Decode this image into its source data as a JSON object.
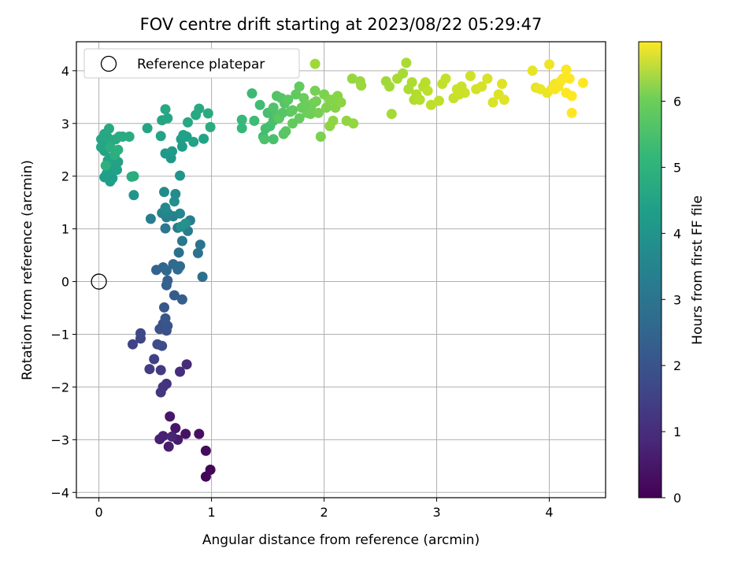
{
  "chart_data": {
    "type": "scatter",
    "title": "FOV centre drift starting at 2023/08/22 05:29:47",
    "xlabel": "Angular distance from reference (arcmin)",
    "ylabel": "Rotation from reference (arcmin)",
    "xlim": [
      -0.2,
      4.5
    ],
    "ylim": [
      -4.1,
      4.55
    ],
    "xticks": [
      0,
      1,
      2,
      3,
      4
    ],
    "yticks": [
      -4,
      -3,
      -2,
      -1,
      0,
      1,
      2,
      3,
      4
    ],
    "grid": true,
    "legend": {
      "placement": "top-left",
      "entries": [
        "Reference platepar"
      ]
    },
    "reference_point": {
      "x": 0,
      "y": 0
    },
    "colorbar": {
      "label": "Hours from first FF file",
      "colormap": "viridis",
      "min": 0,
      "max": 6.9,
      "ticks": [
        0,
        1,
        2,
        3,
        4,
        5,
        6
      ]
    },
    "points": [
      [
        0.95,
        -3.7,
        0.05
      ],
      [
        0.99,
        -3.57,
        0.1
      ],
      [
        0.95,
        -3.21,
        0.2
      ],
      [
        0.89,
        -2.89,
        0.3
      ],
      [
        0.77,
        -2.89,
        0.35
      ],
      [
        0.68,
        -2.78,
        0.4
      ],
      [
        0.63,
        -2.56,
        0.45
      ],
      [
        0.7,
        -3.0,
        0.5
      ],
      [
        0.62,
        -3.13,
        0.55
      ],
      [
        0.54,
        -2.99,
        0.6
      ],
      [
        0.57,
        -2.93,
        0.65
      ],
      [
        0.65,
        -2.94,
        0.7
      ],
      [
        0.78,
        -1.57,
        0.85
      ],
      [
        0.72,
        -1.71,
        0.9
      ],
      [
        0.6,
        -1.94,
        1.0
      ],
      [
        0.57,
        -2.0,
        1.05
      ],
      [
        0.55,
        -2.1,
        1.1
      ],
      [
        0.55,
        -1.68,
        1.2
      ],
      [
        0.45,
        -1.66,
        1.25
      ],
      [
        0.49,
        -1.47,
        1.3
      ],
      [
        0.3,
        -1.19,
        1.4
      ],
      [
        0.37,
        -1.08,
        1.45
      ],
      [
        0.37,
        -0.98,
        1.5
      ],
      [
        0.52,
        -1.19,
        1.55
      ],
      [
        0.56,
        -1.22,
        1.6
      ],
      [
        0.6,
        -0.93,
        1.65
      ],
      [
        0.54,
        -0.9,
        1.7
      ],
      [
        0.57,
        -0.8,
        1.75
      ],
      [
        0.61,
        -0.84,
        1.8
      ],
      [
        0.59,
        -0.7,
        1.85
      ],
      [
        0.58,
        -0.49,
        1.9
      ],
      [
        0.67,
        -0.26,
        2.0
      ],
      [
        0.74,
        -0.34,
        2.05
      ],
      [
        0.6,
        -0.07,
        2.1
      ],
      [
        0.61,
        0.02,
        2.15
      ],
      [
        0.51,
        0.22,
        2.2
      ],
      [
        0.57,
        0.27,
        2.25
      ],
      [
        0.6,
        0.21,
        2.3
      ],
      [
        0.66,
        0.33,
        2.35
      ],
      [
        0.72,
        0.29,
        2.4
      ],
      [
        0.7,
        0.23,
        2.45
      ],
      [
        0.92,
        0.09,
        2.5
      ],
      [
        0.71,
        0.55,
        2.55
      ],
      [
        0.88,
        0.54,
        2.6
      ],
      [
        0.9,
        0.7,
        2.65
      ],
      [
        0.74,
        0.77,
        2.7
      ],
      [
        0.59,
        1.01,
        2.75
      ],
      [
        0.7,
        1.02,
        2.8
      ],
      [
        0.79,
        0.96,
        2.85
      ],
      [
        0.81,
        1.16,
        2.9
      ],
      [
        0.46,
        1.19,
        2.95
      ],
      [
        0.6,
        1.22,
        3.0
      ],
      [
        0.66,
        1.24,
        3.05
      ],
      [
        0.56,
        1.3,
        3.1
      ],
      [
        0.61,
        1.3,
        3.15
      ],
      [
        0.72,
        1.29,
        3.2
      ],
      [
        0.59,
        1.4,
        3.25
      ],
      [
        0.58,
        1.7,
        3.3
      ],
      [
        0.68,
        1.66,
        3.35
      ],
      [
        0.67,
        1.52,
        3.4
      ],
      [
        0.73,
        1.04,
        3.45
      ],
      [
        0.77,
        1.1,
        3.5
      ],
      [
        0.31,
        1.64,
        3.55
      ],
      [
        0.72,
        2.01,
        3.6
      ],
      [
        0.64,
        2.34,
        3.65
      ],
      [
        0.59,
        2.43,
        3.7
      ],
      [
        0.65,
        2.47,
        3.75
      ],
      [
        0.74,
        2.56,
        3.8
      ],
      [
        0.73,
        2.7,
        3.85
      ],
      [
        0.78,
        2.75,
        3.9
      ],
      [
        0.75,
        2.78,
        3.92
      ],
      [
        0.84,
        2.65,
        3.95
      ],
      [
        0.93,
        2.71,
        3.98
      ],
      [
        0.55,
        2.76,
        4.0
      ],
      [
        0.43,
        2.91,
        4.02
      ],
      [
        0.56,
        3.06,
        4.05
      ],
      [
        0.61,
        3.1,
        4.07
      ],
      [
        0.59,
        3.27,
        4.1
      ],
      [
        0.79,
        3.02,
        4.12
      ],
      [
        0.86,
        3.16,
        4.15
      ],
      [
        0.89,
        3.28,
        4.17
      ],
      [
        0.97,
        3.19,
        4.2
      ],
      [
        0.99,
        2.93,
        4.22
      ],
      [
        0.05,
        1.98,
        3.8
      ],
      [
        0.08,
        2.0,
        3.82
      ],
      [
        0.1,
        1.9,
        3.84
      ],
      [
        0.12,
        1.96,
        3.86
      ],
      [
        0.07,
        2.05,
        3.88
      ],
      [
        0.12,
        2.1,
        3.9
      ],
      [
        0.16,
        2.12,
        3.92
      ],
      [
        0.14,
        2.2,
        3.94
      ],
      [
        0.17,
        2.27,
        3.96
      ],
      [
        0.08,
        2.3,
        3.98
      ],
      [
        0.11,
        2.35,
        4.0
      ],
      [
        0.05,
        2.48,
        4.02
      ],
      [
        0.02,
        2.55,
        4.04
      ],
      [
        0.04,
        2.61,
        4.06
      ],
      [
        0.02,
        2.7,
        4.08
      ],
      [
        0.08,
        2.73,
        4.1
      ],
      [
        0.05,
        2.8,
        4.12
      ],
      [
        0.09,
        2.9,
        4.14
      ],
      [
        0.12,
        2.68,
        4.16
      ],
      [
        0.15,
        2.7,
        4.18
      ],
      [
        0.18,
        2.75,
        4.2
      ],
      [
        0.21,
        2.75,
        4.22
      ],
      [
        0.27,
        2.75,
        4.24
      ],
      [
        0.29,
        1.99,
        4.26
      ],
      [
        0.31,
        2.0,
        4.28
      ],
      [
        0.1,
        2.55,
        4.3
      ],
      [
        0.14,
        2.4,
        4.32
      ],
      [
        0.17,
        2.5,
        4.34
      ],
      [
        0.06,
        2.2,
        4.36
      ],
      [
        1.27,
        2.91,
        4.6
      ],
      [
        1.27,
        3.07,
        4.62
      ],
      [
        1.36,
        3.57,
        4.7
      ],
      [
        1.38,
        3.05,
        4.72
      ],
      [
        1.43,
        3.35,
        4.75
      ],
      [
        1.46,
        2.75,
        4.78
      ],
      [
        1.48,
        2.9,
        4.8
      ],
      [
        1.52,
        2.95,
        4.82
      ],
      [
        1.5,
        3.2,
        4.85
      ],
      [
        1.55,
        3.05,
        4.87
      ],
      [
        1.55,
        2.7,
        4.9
      ],
      [
        1.47,
        2.7,
        4.92
      ],
      [
        1.55,
        3.3,
        4.95
      ],
      [
        1.58,
        3.15,
        4.98
      ],
      [
        1.58,
        3.52,
        5.0
      ],
      [
        1.62,
        3.48,
        5.02
      ],
      [
        1.65,
        3.38,
        5.05
      ],
      [
        1.64,
        2.8,
        5.07
      ],
      [
        1.66,
        2.85,
        5.1
      ],
      [
        1.68,
        3.45,
        5.12
      ],
      [
        1.7,
        3.22,
        5.15
      ],
      [
        1.72,
        3.25,
        5.17
      ],
      [
        1.75,
        3.55,
        5.2
      ],
      [
        1.78,
        3.7,
        5.22
      ],
      [
        1.78,
        3.1,
        5.25
      ],
      [
        1.8,
        3.3,
        5.27
      ],
      [
        1.82,
        3.48,
        5.3
      ],
      [
        1.85,
        3.2,
        5.32
      ],
      [
        1.88,
        3.18,
        5.35
      ],
      [
        1.88,
        3.3,
        5.37
      ],
      [
        1.9,
        3.38,
        5.4
      ],
      [
        1.93,
        3.42,
        5.42
      ],
      [
        1.92,
        3.62,
        5.45
      ],
      [
        1.95,
        3.2,
        5.47
      ],
      [
        1.97,
        2.75,
        5.5
      ],
      [
        2.0,
        3.55,
        5.52
      ],
      [
        2.02,
        3.3,
        5.55
      ],
      [
        2.05,
        3.45,
        5.57
      ],
      [
        2.08,
        3.45,
        5.6
      ],
      [
        2.1,
        3.3,
        5.62
      ],
      [
        2.12,
        3.52,
        5.65
      ],
      [
        2.15,
        3.4,
        5.67
      ],
      [
        2.05,
        2.95,
        5.7
      ],
      [
        2.08,
        3.05,
        5.72
      ],
      [
        2.2,
        3.05,
        5.75
      ],
      [
        2.26,
        3.0,
        5.77
      ],
      [
        2.25,
        3.85,
        5.8
      ],
      [
        2.32,
        3.8,
        5.82
      ],
      [
        2.33,
        3.72,
        5.85
      ],
      [
        1.92,
        4.13,
        5.9
      ],
      [
        1.6,
        3.1,
        5.12
      ],
      [
        1.72,
        3.0,
        5.2
      ],
      [
        1.83,
        3.35,
        5.3
      ],
      [
        1.63,
        3.2,
        5.05
      ],
      [
        2.55,
        3.8,
        5.9
      ],
      [
        2.58,
        3.7,
        5.92
      ],
      [
        2.6,
        3.18,
        5.95
      ],
      [
        2.7,
        3.95,
        5.97
      ],
      [
        2.73,
        4.15,
        6.0
      ],
      [
        2.75,
        3.65,
        6.02
      ],
      [
        2.78,
        3.78,
        6.05
      ],
      [
        2.8,
        3.45,
        6.07
      ],
      [
        2.82,
        3.55,
        6.1
      ],
      [
        2.85,
        3.45,
        6.12
      ],
      [
        2.88,
        3.7,
        6.15
      ],
      [
        2.9,
        3.78,
        6.17
      ],
      [
        2.92,
        3.62,
        6.2
      ],
      [
        2.95,
        3.35,
        6.22
      ],
      [
        3.02,
        3.43,
        6.25
      ],
      [
        3.05,
        3.75,
        6.27
      ],
      [
        3.08,
        3.85,
        6.3
      ],
      [
        3.15,
        3.48,
        6.32
      ],
      [
        3.18,
        3.65,
        6.35
      ],
      [
        3.22,
        3.7,
        6.37
      ],
      [
        3.25,
        3.58,
        6.4
      ],
      [
        3.3,
        3.9,
        6.42
      ],
      [
        3.35,
        3.65,
        6.45
      ],
      [
        3.4,
        3.7,
        6.47
      ],
      [
        3.45,
        3.85,
        6.5
      ],
      [
        3.5,
        3.4,
        6.52
      ],
      [
        3.55,
        3.55,
        6.55
      ],
      [
        3.58,
        3.75,
        6.57
      ],
      [
        3.6,
        3.45,
        6.6
      ],
      [
        3.2,
        3.55,
        6.36
      ],
      [
        2.65,
        3.85,
        5.98
      ],
      [
        3.85,
        4.0,
        6.65
      ],
      [
        3.88,
        3.68,
        6.67
      ],
      [
        3.92,
        3.65,
        6.7
      ],
      [
        3.98,
        3.58,
        6.72
      ],
      [
        4.0,
        4.12,
        6.75
      ],
      [
        4.02,
        3.65,
        6.77
      ],
      [
        4.05,
        3.75,
        6.8
      ],
      [
        4.08,
        3.7,
        6.82
      ],
      [
        4.1,
        3.8,
        6.84
      ],
      [
        4.12,
        3.85,
        6.86
      ],
      [
        4.15,
        4.02,
        6.88
      ],
      [
        4.15,
        3.58,
        6.9
      ],
      [
        4.18,
        3.85,
        6.9
      ],
      [
        4.2,
        3.52,
        6.9
      ],
      [
        4.2,
        3.2,
        6.9
      ],
      [
        4.3,
        3.77,
        6.9
      ],
      [
        4.05,
        3.65,
        6.85
      ]
    ]
  }
}
